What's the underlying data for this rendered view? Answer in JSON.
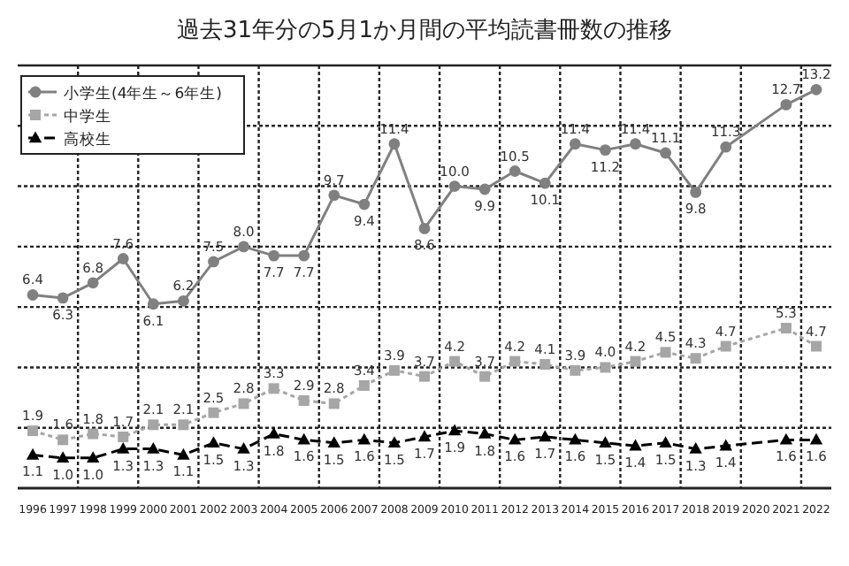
{
  "chart_data": {
    "type": "line",
    "title": "過去31年分の5月1か月間の平均読書冊数の推移",
    "categories": [
      "1996",
      "1997",
      "1998",
      "1999",
      "2000",
      "2001",
      "2002",
      "2003",
      "2004",
      "2005",
      "2006",
      "2007",
      "2008",
      "2009",
      "2010",
      "2011",
      "2012",
      "2013",
      "2014",
      "2015",
      "2016",
      "2017",
      "2018",
      "2019",
      "2020",
      "2021",
      "2022"
    ],
    "series": [
      {
        "name": "小学生(4年生～6年生)",
        "color": "#808080",
        "marker": "circle",
        "line_style": "solid",
        "values": [
          6.4,
          6.3,
          6.8,
          7.6,
          6.1,
          6.2,
          7.5,
          8.0,
          7.7,
          7.7,
          9.7,
          9.4,
          11.4,
          8.6,
          10.0,
          9.9,
          10.5,
          10.1,
          11.4,
          11.2,
          11.4,
          11.1,
          9.8,
          11.3,
          null,
          12.7,
          13.2
        ],
        "value_labels": [
          "6.4",
          "6.3",
          "6.8",
          "7.6",
          "6.1",
          "6.2",
          "7.5",
          "8.0",
          "7.7",
          "7.7",
          "9.7",
          "9.4",
          "11.4",
          "8.6",
          "10.0",
          "9.9",
          "10.5",
          "10.1",
          "11.4",
          "11.2",
          "11.4",
          "11.1",
          "9.8",
          "11.3",
          null,
          "12.7",
          "13.2"
        ]
      },
      {
        "name": "中学生",
        "color": "#a6a6a6",
        "marker": "square",
        "line_style": "dotted",
        "values": [
          1.9,
          1.6,
          1.8,
          1.7,
          2.1,
          2.1,
          2.5,
          2.8,
          3.3,
          2.9,
          2.8,
          3.4,
          3.9,
          3.7,
          4.2,
          3.7,
          4.2,
          4.1,
          3.9,
          4.0,
          4.2,
          4.5,
          4.3,
          4.7,
          null,
          5.3,
          4.7
        ],
        "value_labels": [
          "1.9",
          "1.6",
          "1.8",
          "1.7",
          "2.1",
          "2.1",
          "2.5",
          "2.8",
          "3.3",
          "2.9",
          "2.8",
          "3.4",
          "3.9",
          "3.7",
          "4.2",
          "3.7",
          "4.2",
          "4.1",
          "3.9",
          "4.0",
          "4.2",
          "4.5",
          "4.3",
          "4.7",
          null,
          "5.3",
          "4.7"
        ]
      },
      {
        "name": "高校生",
        "color": "#000000",
        "marker": "triangle",
        "line_style": "dashed",
        "values": [
          1.1,
          1.0,
          1.0,
          1.3,
          1.3,
          1.1,
          1.5,
          1.3,
          1.8,
          1.6,
          1.5,
          1.6,
          1.5,
          1.7,
          1.9,
          1.8,
          1.6,
          1.7,
          1.6,
          1.5,
          1.4,
          1.5,
          1.3,
          1.4,
          null,
          1.6,
          1.6
        ],
        "value_labels": [
          "1.1",
          "1.0",
          "1.0",
          "1.3",
          "1.3",
          "1.1",
          "1.5",
          "1.3",
          "1.8",
          "1.6",
          "1.5",
          "1.6",
          "1.5",
          "1.7",
          "1.9",
          "1.8",
          "1.6",
          "1.7",
          "1.6",
          "1.5",
          "1.4",
          "1.5",
          "1.3",
          "1.4",
          null,
          "1.6",
          "1.6"
        ]
      }
    ],
    "ylim": [
      0,
      14
    ],
    "yticks": [
      {
        "value": 0,
        "label": null
      },
      {
        "value": 2,
        "label": null
      },
      {
        "value": 4,
        "label": null
      },
      {
        "value": 6,
        "label": null
      },
      {
        "value": 8,
        "label": null
      },
      {
        "value": 10,
        "label": null
      },
      {
        "value": 12,
        "label": null
      },
      {
        "value": 14,
        "label": null
      }
    ],
    "grid": true,
    "legend": "top left",
    "tick_labels": "x"
  }
}
